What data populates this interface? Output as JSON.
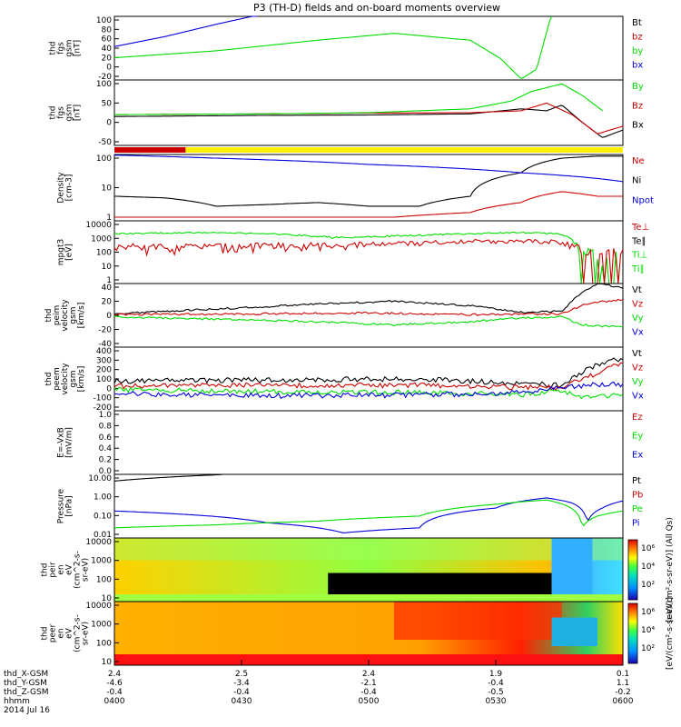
{
  "title": "P3 (TH-D) fields and on-board moments overview",
  "colors": {
    "black": "#000000",
    "red": "#cc0000",
    "green": "#00dd00",
    "blue": "#0000dd",
    "yellow": "#ffee00"
  },
  "chart_data": [
    {
      "id": "fgs_gsm_1",
      "type": "line",
      "ylabel": [
        "thd",
        "fgs",
        "gsm",
        "[nT]"
      ],
      "yticks": [
        "100",
        "80",
        "60",
        "40",
        "20",
        "0",
        "-20"
      ],
      "ylim": [
        -20,
        100
      ],
      "legend": [
        {
          "label": "Bt",
          "color": "#000000"
        },
        {
          "label": "bz",
          "color": "#cc0000"
        },
        {
          "label": "by",
          "color": "#00dd00"
        },
        {
          "label": "bx",
          "color": "#0000dd"
        }
      ],
      "series": [
        {
          "name": "by",
          "color": "#00dd00",
          "x": [
            0,
            0.2,
            0.4,
            0.55,
            0.7,
            0.76,
            0.8,
            0.83,
            0.86
          ],
          "y": [
            22,
            35,
            55,
            68,
            55,
            20,
            -18,
            0,
            105
          ]
        },
        {
          "name": "bx",
          "color": "#0000dd",
          "x": [
            0,
            0.1,
            0.2,
            0.28
          ],
          "y": [
            43,
            62,
            85,
            102
          ]
        }
      ]
    },
    {
      "id": "fgs_gsm_2",
      "type": "line",
      "ylabel": [
        "thd",
        "fgs",
        "gsm",
        "[nT]"
      ],
      "yticks": [
        "100",
        "50",
        "0",
        "-50"
      ],
      "ylim": [
        -70,
        100
      ],
      "legend": [
        {
          "label": "By",
          "color": "#00dd00"
        },
        {
          "label": "Bz",
          "color": "#cc0000"
        },
        {
          "label": "Bx",
          "color": "#000000"
        }
      ],
      "series": [
        {
          "name": "Bx",
          "color": "#000000",
          "x": [
            0,
            0.3,
            0.5,
            0.7,
            0.8,
            0.85,
            0.88,
            0.92,
            0.96,
            1.0
          ],
          "y": [
            5,
            8,
            9,
            12,
            25,
            20,
            35,
            -10,
            -50,
            -30
          ]
        },
        {
          "name": "Bz",
          "color": "#cc0000",
          "x": [
            0,
            0.3,
            0.5,
            0.7,
            0.8,
            0.85,
            0.9,
            0.95,
            1.0
          ],
          "y": [
            10,
            12,
            14,
            15,
            20,
            40,
            10,
            -40,
            -20
          ]
        },
        {
          "name": "By",
          "color": "#00dd00",
          "x": [
            0,
            0.3,
            0.5,
            0.7,
            0.78,
            0.82,
            0.88,
            0.92,
            0.96
          ],
          "y": [
            10,
            12,
            15,
            25,
            45,
            70,
            90,
            60,
            20
          ]
        }
      ]
    },
    {
      "id": "mode_bar",
      "type": "bar",
      "segments": [
        {
          "from": 0,
          "to": 0.14,
          "color": "#cc0000"
        },
        {
          "from": 0.14,
          "to": 1.0,
          "color": "#ffee00"
        }
      ]
    },
    {
      "id": "density",
      "type": "line",
      "yscale": "log",
      "ylabel": [
        "Density",
        "[cm-3]"
      ],
      "yticks": [
        "100",
        "10",
        "1"
      ],
      "ylim": [
        0.2,
        300
      ],
      "legend": [
        {
          "label": "Ne",
          "color": "#cc0000"
        },
        {
          "label": "Ni",
          "color": "#000000"
        },
        {
          "label": "Npot",
          "color": "#0000dd"
        }
      ],
      "series": [
        {
          "name": "Ni",
          "color": "#000000",
          "x": [
            0,
            0.1,
            0.2,
            0.3,
            0.4,
            0.5,
            0.6,
            0.7,
            0.8,
            0.88,
            0.95,
            1.0
          ],
          "y": [
            3,
            2.5,
            1,
            1.2,
            1.5,
            1,
            1,
            3,
            40,
            200,
            250,
            250
          ]
        },
        {
          "name": "Ne",
          "color": "#cc0000",
          "x": [
            0,
            0.3,
            0.55,
            0.7,
            0.8,
            0.88,
            0.95,
            1.0
          ],
          "y": [
            0.3,
            0.3,
            0.3,
            0.5,
            1.5,
            5,
            3,
            3
          ]
        },
        {
          "name": "Npot",
          "color": "#0000dd",
          "x": [
            0,
            0.2,
            0.5,
            0.8,
            1.0
          ],
          "y": [
            280,
            200,
            100,
            40,
            15
          ]
        }
      ]
    },
    {
      "id": "mom_t3",
      "type": "line",
      "yscale": "log",
      "ylabel": [
        "mpgt3",
        "[eV]"
      ],
      "yticks": [
        "10000",
        "1000",
        "100",
        "10",
        "1"
      ],
      "ylim": [
        1,
        10000
      ],
      "legend": [
        {
          "label": "Te⊥",
          "color": "#cc0000"
        },
        {
          "label": "Te∥",
          "color": "#000000"
        },
        {
          "label": "Ti⊥",
          "color": "#00dd00"
        },
        {
          "label": "Ti∥",
          "color": "#00dd00"
        }
      ],
      "series": [
        {
          "name": "Ti",
          "color": "#00dd00",
          "x": [
            0,
            0.2,
            0.3,
            0.45,
            0.6,
            0.8,
            0.87,
            0.92,
            1.0
          ],
          "y": [
            1500,
            1800,
            1500,
            800,
            1200,
            1800,
            1500,
            30,
            15
          ]
        },
        {
          "name": "Te",
          "color": "#cc0000",
          "x": [
            0,
            0.2,
            0.5,
            0.7,
            0.87,
            0.92,
            1.0
          ],
          "y": [
            200,
            220,
            300,
            500,
            500,
            80,
            15
          ]
        }
      ]
    },
    {
      "id": "peim_velocity",
      "type": "line",
      "ylabel": [
        "thd",
        "peim",
        "velocity",
        "gsm",
        "[km/s]"
      ],
      "yticks": [
        "40",
        "20",
        "0",
        "-20",
        "-40"
      ],
      "ylim": [
        -40,
        40
      ],
      "legend": [
        {
          "label": "Vt",
          "color": "#000000"
        },
        {
          "label": "Vz",
          "color": "#cc0000"
        },
        {
          "label": "Vy",
          "color": "#00dd00"
        },
        {
          "label": "Vx",
          "color": "#0000dd"
        }
      ],
      "series": [
        {
          "name": "Vt",
          "color": "#000000",
          "x": [
            0,
            0.2,
            0.4,
            0.55,
            0.7,
            0.8,
            0.88,
            0.92,
            0.95,
            1.0
          ],
          "y": [
            2,
            8,
            14,
            18,
            12,
            4,
            5,
            30,
            40,
            35
          ]
        },
        {
          "name": "Vy",
          "color": "#00dd00",
          "x": [
            0,
            0.2,
            0.4,
            0.55,
            0.7,
            0.8,
            0.88,
            0.92,
            1.0
          ],
          "y": [
            -2,
            -5,
            -8,
            -12,
            -8,
            -3,
            -2,
            -12,
            -15
          ]
        },
        {
          "name": "Vz",
          "color": "#cc0000",
          "x": [
            0,
            0.3,
            0.5,
            0.7,
            0.88,
            0.93,
            1.0
          ],
          "y": [
            1,
            2,
            3,
            1,
            2,
            15,
            20
          ]
        }
      ]
    },
    {
      "id": "peem_velocity",
      "type": "line",
      "ylabel": [
        "thd",
        "peem",
        "velocity",
        "gsm",
        "[km/s]"
      ],
      "yticks": [
        "400",
        "300",
        "200",
        "100",
        "0",
        "-100",
        "-200"
      ],
      "ylim": [
        -200,
        400
      ],
      "legend": [
        {
          "label": "Vt",
          "color": "#000000"
        },
        {
          "label": "Vz",
          "color": "#cc0000"
        },
        {
          "label": "Vy",
          "color": "#00dd00"
        },
        {
          "label": "Vx",
          "color": "#0000dd"
        }
      ],
      "series": [
        {
          "name": "Vt",
          "color": "#000000",
          "x": [
            0,
            0.3,
            0.6,
            0.8,
            0.88,
            0.93,
            1.0
          ],
          "y": [
            80,
            90,
            100,
            60,
            40,
            200,
            300
          ]
        },
        {
          "name": "Vz",
          "color": "#cc0000",
          "x": [
            0,
            0.3,
            0.6,
            0.8,
            0.88,
            0.93,
            1.0
          ],
          "y": [
            30,
            40,
            40,
            20,
            20,
            120,
            250
          ]
        },
        {
          "name": "Vy",
          "color": "#00dd00",
          "x": [
            0,
            0.3,
            0.6,
            0.8,
            0.88,
            0.93,
            1.0
          ],
          "y": [
            0,
            -20,
            -30,
            -50,
            -10,
            -80,
            -40
          ]
        },
        {
          "name": "Vx",
          "color": "#0000dd",
          "x": [
            0,
            0.3,
            0.6,
            0.8,
            0.88,
            0.93,
            1.0
          ],
          "y": [
            -40,
            -60,
            -50,
            -30,
            20,
            40,
            50
          ]
        }
      ]
    },
    {
      "id": "efield",
      "type": "line",
      "ylabel": [
        "E=-VxB",
        "[mV/m]"
      ],
      "yticks": [
        "1.0",
        "0.8",
        "0.6",
        "0.4",
        "0.2",
        "0.0"
      ],
      "ylim": [
        0,
        1
      ],
      "legend": [
        {
          "label": "Ez",
          "color": "#cc0000"
        },
        {
          "label": "Ey",
          "color": "#00dd00"
        },
        {
          "label": "Ex",
          "color": "#0000dd"
        }
      ],
      "series": []
    },
    {
      "id": "pressure",
      "type": "line",
      "yscale": "log",
      "ylabel": [
        "Pressure",
        "[nPa]"
      ],
      "yticks": [
        "10.00",
        "1.00",
        "0.10",
        "0.01"
      ],
      "ylim": [
        0.005,
        30
      ],
      "legend": [
        {
          "label": "Pt",
          "color": "#000000"
        },
        {
          "label": "Pb",
          "color": "#cc0000"
        },
        {
          "label": "Pe",
          "color": "#00dd00"
        },
        {
          "label": "Pi",
          "color": "#0000dd"
        }
      ],
      "series": [
        {
          "name": "Pt",
          "color": "#000000",
          "x": [
            0,
            0.1,
            0.2,
            0.25
          ],
          "y": [
            12,
            20,
            28,
            35
          ]
        },
        {
          "name": "Pi",
          "color": "#0000dd",
          "x": [
            0,
            0.15,
            0.3,
            0.45,
            0.6,
            0.75,
            0.85,
            0.9,
            0.93,
            0.96,
            1.0
          ],
          "y": [
            0.2,
            0.12,
            0.04,
            0.01,
            0.02,
            0.3,
            1.2,
            0.6,
            0.04,
            0.3,
            0.8
          ]
        },
        {
          "name": "Pe",
          "color": "#00dd00",
          "x": [
            0,
            0.2,
            0.4,
            0.6,
            0.75,
            0.85,
            0.92,
            0.95,
            1.0
          ],
          "y": [
            0.02,
            0.03,
            0.05,
            0.1,
            0.5,
            0.9,
            0.02,
            0.1,
            0.2
          ]
        }
      ]
    },
    {
      "id": "peir_spec",
      "type": "heatmap",
      "ylabel": [
        "thd",
        "peir",
        "en",
        "eV",
        "(cm^2-s-",
        "sr-eV)"
      ],
      "yticks": [
        "10000",
        "1000",
        "100",
        "10"
      ],
      "colorbar": {
        "ticks": [
          "10⁶",
          "10⁴",
          "10²"
        ],
        "label": "[eV/(cm²-s-sr-eV)] (All Qs)"
      }
    },
    {
      "id": "peer_spec",
      "type": "heatmap",
      "ylabel": [
        "thd",
        "peer",
        "en",
        "eV",
        "(cm^2-s-",
        "sr-eV)"
      ],
      "yticks": [
        "10000",
        "1000",
        "100",
        "10"
      ],
      "colorbar": {
        "ticks": [
          "10⁶",
          "10⁴",
          "10²"
        ],
        "label": "[eV/(cm²-s-sr-eV)]"
      }
    }
  ],
  "xaxis": {
    "rows": [
      {
        "label": "thd_X-GSM",
        "values": [
          "2.4",
          "2.5",
          "2.4",
          "1.9",
          "0.1"
        ]
      },
      {
        "label": "thd_Y-GSM",
        "values": [
          "-4.6",
          "-3.4",
          "-2.1",
          "-0.4",
          "1.1"
        ]
      },
      {
        "label": "thd_Z-GSM",
        "values": [
          "-0.4",
          "-0.4",
          "-0.4",
          "-0.5",
          "-0.2"
        ]
      },
      {
        "label": "hhmm",
        "values": [
          "0400",
          "0430",
          "0500",
          "0530",
          "0600"
        ]
      }
    ],
    "date": "2014 Jul 16"
  }
}
